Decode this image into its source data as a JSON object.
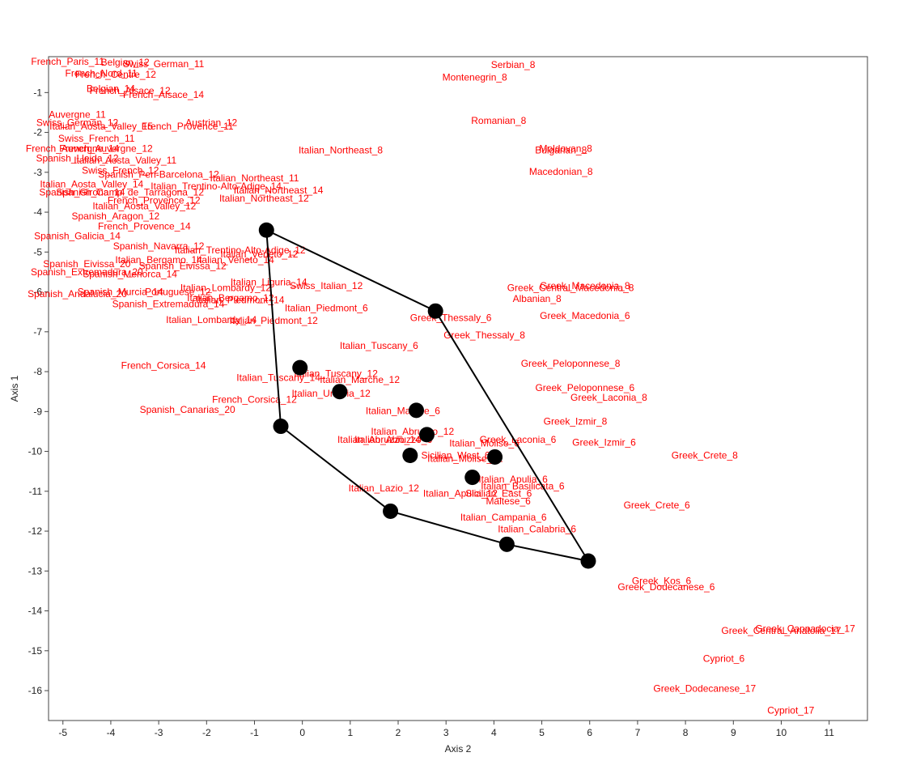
{
  "chart_data": {
    "type": "scatter",
    "title": "",
    "xlabel": "Axis 2",
    "ylabel": "Axis 1",
    "xlim": [
      -5.3,
      11.8
    ],
    "ylim": [
      -16.75,
      -0.1
    ],
    "xticks": [
      -5,
      -4,
      -3,
      -2,
      -1,
      0,
      1,
      2,
      3,
      4,
      5,
      6,
      7,
      8,
      9,
      10,
      11
    ],
    "yticks": [
      -1,
      -2,
      -3,
      -4,
      -5,
      -6,
      -7,
      -8,
      -9,
      -10,
      -11,
      -12,
      -13,
      -14,
      -15,
      -16
    ],
    "label_color": "#ff0000",
    "hull_color": "#000000",
    "labels": [
      {
        "text": "French_Paris_11",
        "x": -4.9,
        "y": -0.22
      },
      {
        "text": "Swiss_German_11",
        "x": -2.9,
        "y": -0.28
      },
      {
        "text": "Belgian_12",
        "x": -3.7,
        "y": -0.24
      },
      {
        "text": "French_Nord_11",
        "x": -4.2,
        "y": -0.52
      },
      {
        "text": "French_Centre_12",
        "x": -3.9,
        "y": -0.55
      },
      {
        "text": "Belgian_14",
        "x": -4.0,
        "y": -0.9
      },
      {
        "text": "French_Alsace_12",
        "x": -3.6,
        "y": -0.95
      },
      {
        "text": "French_Alsace_14",
        "x": -2.9,
        "y": -1.05
      },
      {
        "text": "Auvergne_11",
        "x": -4.7,
        "y": -1.55
      },
      {
        "text": "Swiss_German_12",
        "x": -4.7,
        "y": -1.75
      },
      {
        "text": "Italian_Aosta_Valley_15",
        "x": -4.2,
        "y": -1.85
      },
      {
        "text": "Austrian_12",
        "x": -1.9,
        "y": -1.75
      },
      {
        "text": "French_Provence_11",
        "x": -2.4,
        "y": -1.85
      },
      {
        "text": "Swiss_French_11",
        "x": -4.3,
        "y": -2.15
      },
      {
        "text": "French_Auvergne_14",
        "x": -4.8,
        "y": -2.4
      },
      {
        "text": "French_Auvergne_12",
        "x": -4.1,
        "y": -2.4
      },
      {
        "text": "Spanish_Lleida_12",
        "x": -4.7,
        "y": -2.65
      },
      {
        "text": "Italian_Aosta_Valley_11",
        "x": -3.7,
        "y": -2.7
      },
      {
        "text": "Swiss_French_12",
        "x": -3.8,
        "y": -2.95
      },
      {
        "text": "Spanish_Peri-Barcelona_12",
        "x": -3.0,
        "y": -3.05
      },
      {
        "text": "Italian_Aosta_Valley_14",
        "x": -4.4,
        "y": -3.3
      },
      {
        "text": "Italian_Trentino-Alto-Adige_14",
        "x": -1.8,
        "y": -3.35
      },
      {
        "text": "Spanish_Girona_14",
        "x": -4.6,
        "y": -3.5
      },
      {
        "text": "Spanish_Camp_de_Tarragona_12",
        "x": -3.6,
        "y": -3.5
      },
      {
        "text": "French_Provence_12",
        "x": -3.1,
        "y": -3.7
      },
      {
        "text": "Italian_Aosta_Valley_12",
        "x": -3.3,
        "y": -3.85
      },
      {
        "text": "Spanish_Aragon_12",
        "x": -3.9,
        "y": -4.1
      },
      {
        "text": "French_Provence_14",
        "x": -3.3,
        "y": -4.35
      },
      {
        "text": "Spanish_Galicia_14",
        "x": -4.7,
        "y": -4.6
      },
      {
        "text": "Italian_Northeast_8",
        "x": 0.8,
        "y": -2.45
      },
      {
        "text": "Italian_Northeast_11",
        "x": -1.0,
        "y": -3.15
      },
      {
        "text": "Italian_Northeast_14",
        "x": -0.5,
        "y": -3.45
      },
      {
        "text": "Italian_Northeast_12",
        "x": -0.8,
        "y": -3.65
      },
      {
        "text": "Italian_Trentino-Alto-Adige_12",
        "x": -1.3,
        "y": -4.95
      },
      {
        "text": "Italian_Veneto_12",
        "x": -0.9,
        "y": -5.05
      },
      {
        "text": "Italian_Veneto_14",
        "x": -1.4,
        "y": -5.2
      },
      {
        "text": "Spanish_Navarra_12",
        "x": -3.0,
        "y": -4.85
      },
      {
        "text": "Italian_Bergamo_14",
        "x": -3.0,
        "y": -5.2
      },
      {
        "text": "Spanish_Eivissa_20",
        "x": -4.5,
        "y": -5.3
      },
      {
        "text": "Spanish_Eivissa_12",
        "x": -2.5,
        "y": -5.35
      },
      {
        "text": "Spanish_Menorca_14",
        "x": -3.6,
        "y": -5.55
      },
      {
        "text": "Spanish_Extremadura_20",
        "x": -4.5,
        "y": -5.5
      },
      {
        "text": "Spanish_Andalucia_20",
        "x": -4.7,
        "y": -6.05
      },
      {
        "text": "Spanish_Murcia_14",
        "x": -3.8,
        "y": -6.0
      },
      {
        "text": "Portuguese_12",
        "x": -2.6,
        "y": -6.0
      },
      {
        "text": "Spanish_Extremadura_14",
        "x": -2.8,
        "y": -6.3
      },
      {
        "text": "Italian_Lombardy_12",
        "x": -1.6,
        "y": -5.9
      },
      {
        "text": "Italian_Bergamo_12",
        "x": -1.5,
        "y": -6.15
      },
      {
        "text": "Italian_Piedmont_14",
        "x": -1.3,
        "y": -6.2
      },
      {
        "text": "Italian_Liguria_14",
        "x": -0.7,
        "y": -5.75
      },
      {
        "text": "Swiss_Italian_12",
        "x": 0.5,
        "y": -5.85
      },
      {
        "text": "Italian_Piedmont_6",
        "x": 0.5,
        "y": -6.4
      },
      {
        "text": "Italian_Lombardy_14",
        "x": -1.9,
        "y": -6.7
      },
      {
        "text": "Italian_Piedmont_12",
        "x": -0.6,
        "y": -6.72
      },
      {
        "text": "Serbian_8",
        "x": 4.4,
        "y": -0.3
      },
      {
        "text": "Montenegrin_8",
        "x": 3.6,
        "y": -0.62
      },
      {
        "text": "Romanian_8",
        "x": 4.1,
        "y": -1.7
      },
      {
        "text": "Moldovan_8",
        "x": 5.5,
        "y": -2.4
      },
      {
        "text": "Bulgarian_8",
        "x": 5.4,
        "y": -2.45
      },
      {
        "text": "Macedonian_8",
        "x": 5.4,
        "y": -2.98
      },
      {
        "text": "Greek_Central_Macedonia_8",
        "x": 5.6,
        "y": -5.9
      },
      {
        "text": "Greek_Macedonia_8",
        "x": 5.9,
        "y": -5.85
      },
      {
        "text": "Albanian_8",
        "x": 4.9,
        "y": -6.17
      },
      {
        "text": "Greek_Macedonia_6",
        "x": 5.9,
        "y": -6.6
      },
      {
        "text": "Greek_Thessaly_6",
        "x": 3.1,
        "y": -6.65
      },
      {
        "text": "Greek_Thessaly_8",
        "x": 3.8,
        "y": -7.08
      },
      {
        "text": "Italian_Tuscany_6",
        "x": 1.6,
        "y": -7.35
      },
      {
        "text": "Greek_Peloponnese_8",
        "x": 5.6,
        "y": -7.8
      },
      {
        "text": "French_Corsica_14",
        "x": -2.9,
        "y": -7.85
      },
      {
        "text": "Italian_Tuscany_12",
        "x": 0.7,
        "y": -8.05
      },
      {
        "text": "Italian_Tuscany_14",
        "x": -0.5,
        "y": -8.15
      },
      {
        "text": "Italian_Marche_12",
        "x": 1.2,
        "y": -8.2
      },
      {
        "text": "Greek_Peloponnese_6",
        "x": 5.9,
        "y": -8.4
      },
      {
        "text": "Italian_Umbria_12",
        "x": 0.6,
        "y": -8.55
      },
      {
        "text": "Greek_Laconia_8",
        "x": 6.4,
        "y": -8.65
      },
      {
        "text": "French_Corsica_12",
        "x": -1.0,
        "y": -8.7
      },
      {
        "text": "Spanish_Canarias_20",
        "x": -2.4,
        "y": -8.95
      },
      {
        "text": "Italian_Marche_6",
        "x": 2.1,
        "y": -8.98
      },
      {
        "text": "Greek_Izmir_8",
        "x": 5.7,
        "y": -9.25
      },
      {
        "text": "Italian_Abruzzo_12",
        "x": 2.3,
        "y": -9.5
      },
      {
        "text": "Italian_Abruzzo_6",
        "x": 1.9,
        "y": -9.7
      },
      {
        "text": "Italian_Abruzzo_14",
        "x": 1.6,
        "y": -9.7
      },
      {
        "text": "Italian_Molise_6",
        "x": 3.8,
        "y": -9.8
      },
      {
        "text": "Greek_Laconia_6",
        "x": 4.5,
        "y": -9.7
      },
      {
        "text": "Greek_Izmir_6",
        "x": 6.3,
        "y": -9.78
      },
      {
        "text": "Sicilian_West_6",
        "x": 3.2,
        "y": -10.1
      },
      {
        "text": "Italian_Molise_12",
        "x": 3.4,
        "y": -10.18
      },
      {
        "text": "Greek_Crete_8",
        "x": 8.4,
        "y": -10.1
      },
      {
        "text": "Italian_Apulia_6",
        "x": 4.4,
        "y": -10.7
      },
      {
        "text": "Italian_Basilicata_6",
        "x": 4.6,
        "y": -10.87
      },
      {
        "text": "Italian_Lazio_12",
        "x": 1.7,
        "y": -10.92
      },
      {
        "text": "Italian_Apulia_12",
        "x": 3.3,
        "y": -11.05
      },
      {
        "text": "Sicilian_East_6",
        "x": 4.1,
        "y": -11.05
      },
      {
        "text": "Maltese_6",
        "x": 4.3,
        "y": -11.25
      },
      {
        "text": "Greek_Crete_6",
        "x": 7.4,
        "y": -11.35
      },
      {
        "text": "Italian_Campania_6",
        "x": 4.2,
        "y": -11.65
      },
      {
        "text": "Italian_Calabria_6",
        "x": 4.9,
        "y": -11.95
      },
      {
        "text": "Greek_Kos_6",
        "x": 7.5,
        "y": -13.25
      },
      {
        "text": "Greek_Dodecanese_6",
        "x": 7.6,
        "y": -13.4
      },
      {
        "text": "Greek_Central_Anatolia_17",
        "x": 10.0,
        "y": -14.5
      },
      {
        "text": "Greek_Cappadocia_17",
        "x": 10.5,
        "y": -14.45
      },
      {
        "text": "Cypriot_6",
        "x": 8.8,
        "y": -15.2
      },
      {
        "text": "Greek_Dodecanese_17",
        "x": 8.4,
        "y": -15.95
      },
      {
        "text": "Cypriot_17",
        "x": 10.2,
        "y": -16.5
      }
    ],
    "hull_points": [
      {
        "x": -0.75,
        "y": -4.45
      },
      {
        "x": 2.78,
        "y": -6.48
      },
      {
        "x": 5.97,
        "y": -12.75
      },
      {
        "x": 4.27,
        "y": -12.33
      },
      {
        "x": 1.84,
        "y": -11.5
      },
      {
        "x": -0.45,
        "y": -9.37
      },
      {
        "x": -0.75,
        "y": -4.45
      }
    ],
    "markers": [
      {
        "x": -0.75,
        "y": -4.45
      },
      {
        "x": 2.78,
        "y": -6.48
      },
      {
        "x": -0.05,
        "y": -7.9
      },
      {
        "x": 0.78,
        "y": -8.5
      },
      {
        "x": 2.38,
        "y": -8.97
      },
      {
        "x": 2.6,
        "y": -9.58
      },
      {
        "x": 2.25,
        "y": -10.1
      },
      {
        "x": 4.02,
        "y": -10.14
      },
      {
        "x": 3.55,
        "y": -10.65
      },
      {
        "x": -0.45,
        "y": -9.37
      },
      {
        "x": 1.84,
        "y": -11.5
      },
      {
        "x": 4.27,
        "y": -12.33
      },
      {
        "x": 5.97,
        "y": -12.75
      }
    ]
  }
}
